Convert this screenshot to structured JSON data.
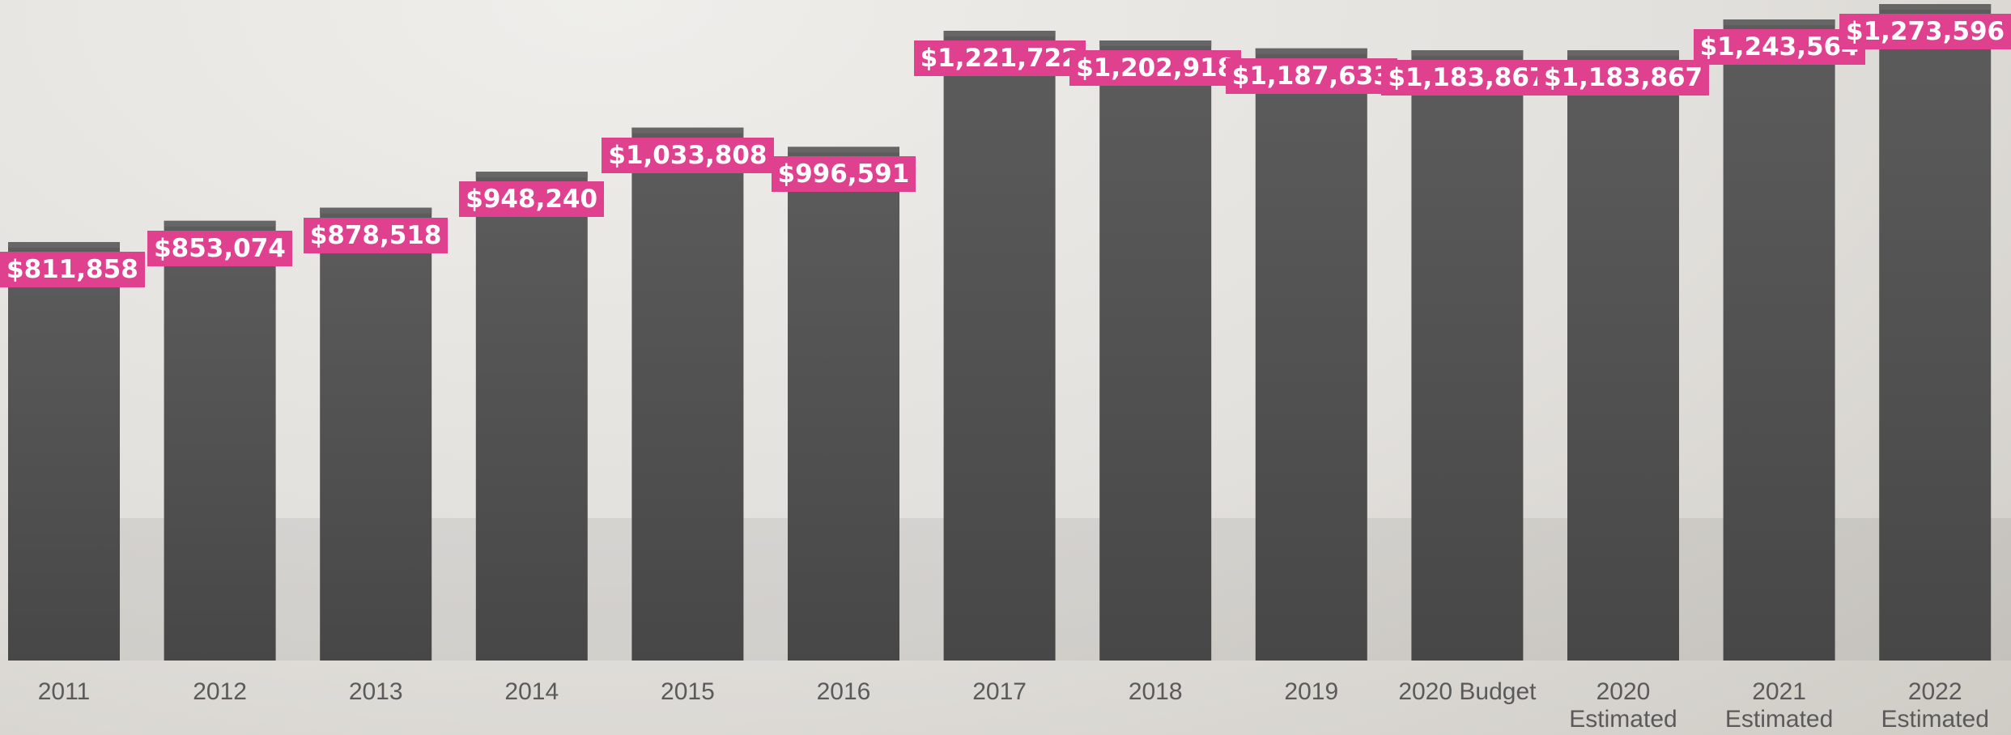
{
  "chart_data": {
    "type": "bar",
    "categories": [
      "2011",
      "2012",
      "2013",
      "2014",
      "2015",
      "2016",
      "2017",
      "2018",
      "2019",
      "2020 Budget",
      "2020 Estimated",
      "2021 Estimated",
      "2022 Estimated"
    ],
    "values": [
      811858,
      853074,
      878518,
      948240,
      1033808,
      996591,
      1221722,
      1202918,
      1187633,
      1183867,
      1183867,
      1243564,
      1273596
    ],
    "value_labels": [
      "$811,858",
      "$853,074",
      "$878,518",
      "$948,240",
      "$1,033,808",
      "$996,591",
      "$1,221,722",
      "$1,202,918",
      "$1,187,633",
      "$1,183,867",
      "$1,183,867",
      "$1,243,564",
      "$1,273,596"
    ],
    "color": "#4d4d4d",
    "label_color": "#e0418f"
  }
}
